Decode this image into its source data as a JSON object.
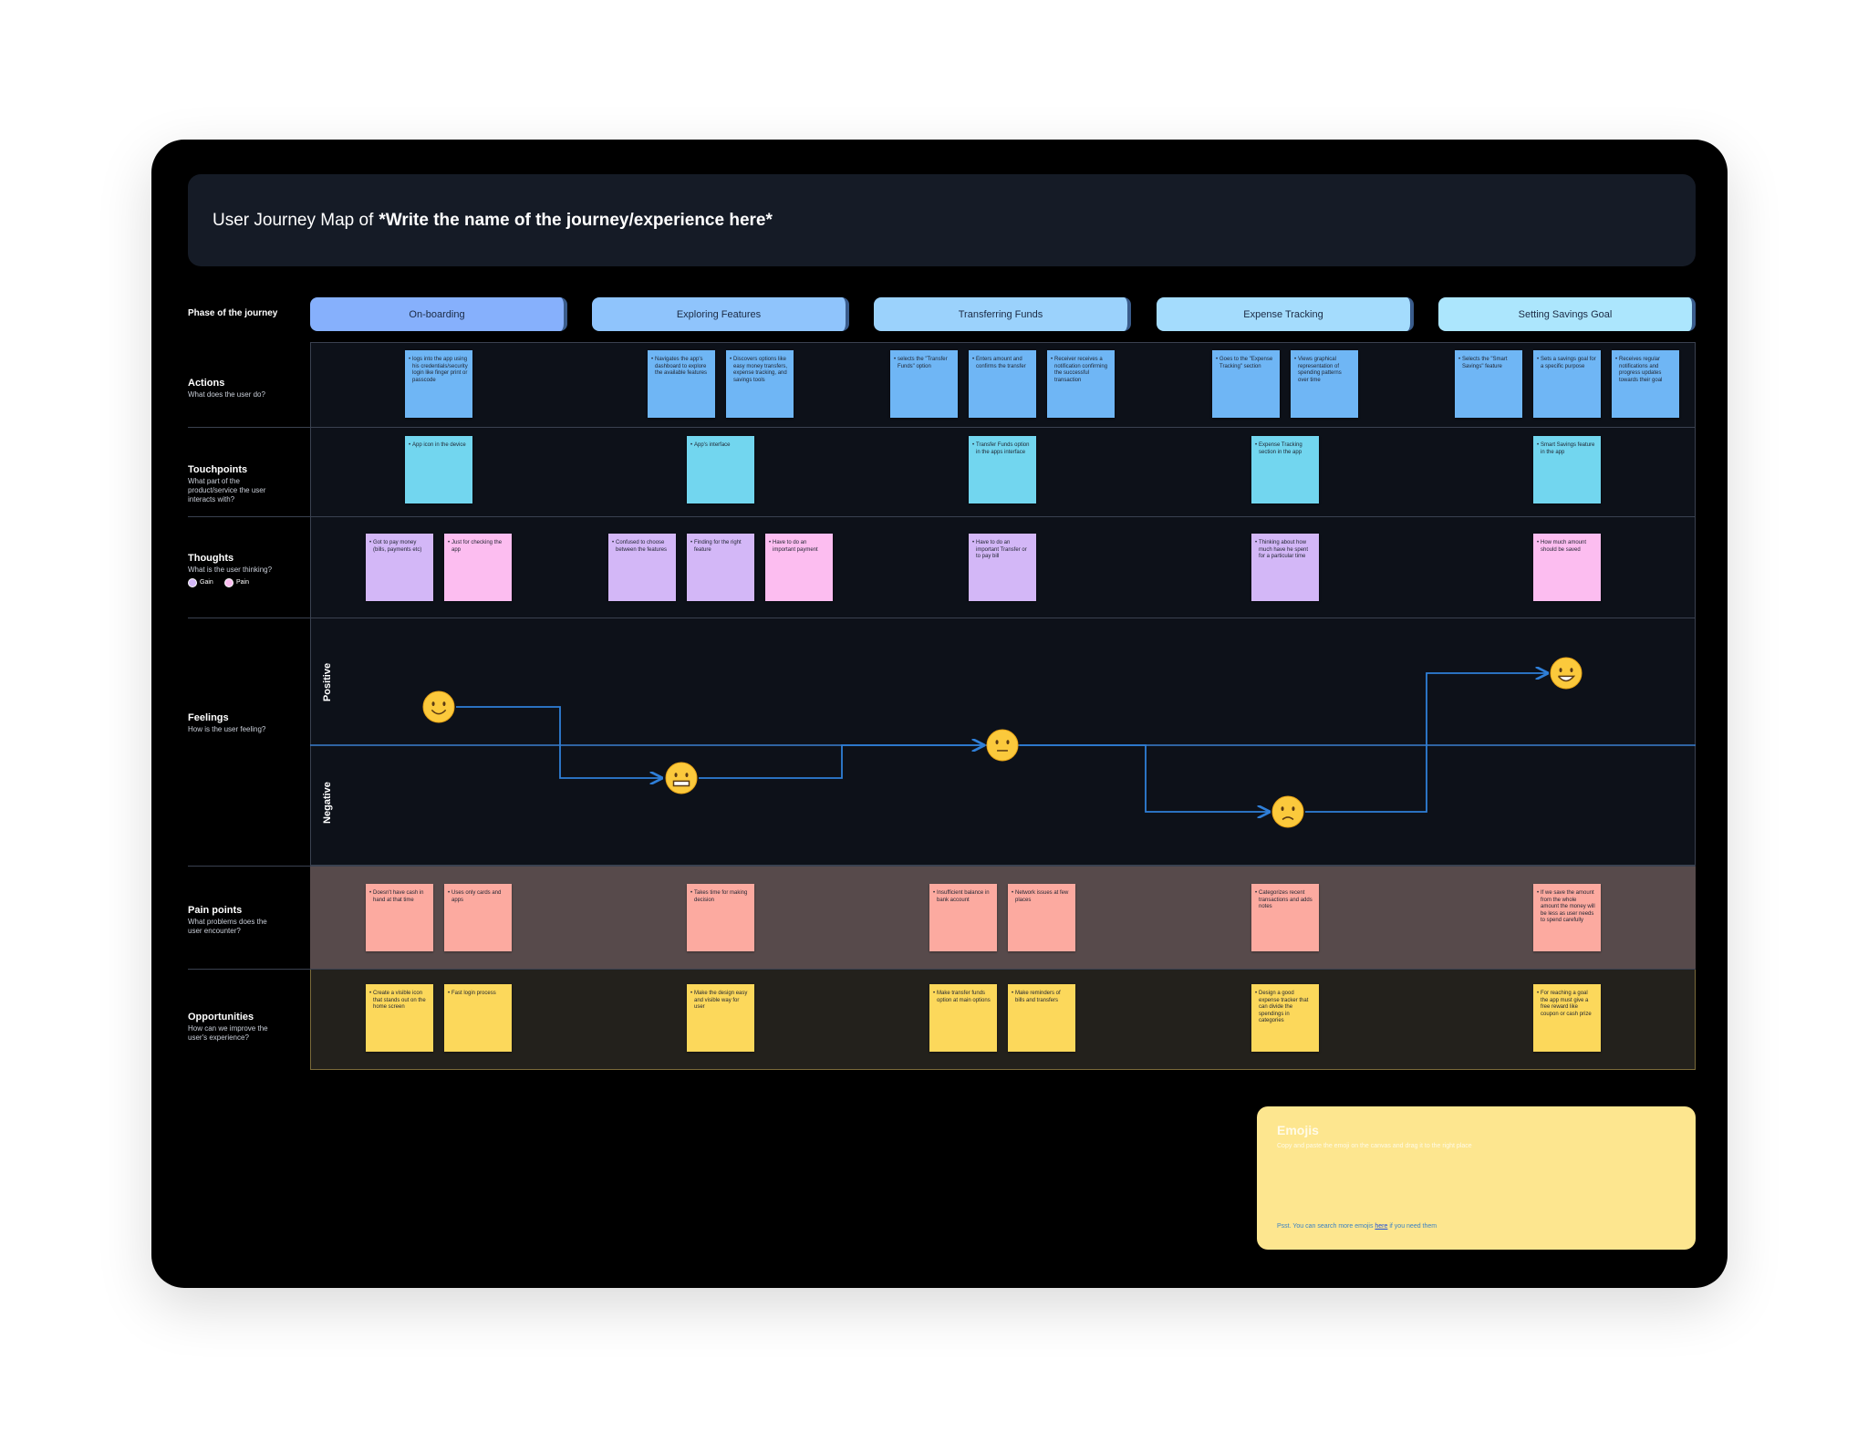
{
  "header": {
    "title_prefix": "User Journey Map of ",
    "title_placeholder": "*Write the name of the journey/experience here*"
  },
  "row_labels": {
    "phase": "Phase of the journey",
    "actions": {
      "title": "Actions",
      "subtitle": "What does the user do?"
    },
    "touchpoints": {
      "title": "Touchpoints",
      "subtitle": "What part of the product/service the user interacts with?"
    },
    "thoughts": {
      "title": "Thoughts",
      "subtitle": "What is the user thinking?",
      "legend": [
        "Gain",
        "Pain"
      ]
    },
    "feelings": {
      "title": "Feelings",
      "subtitle": "How is the user feeling?",
      "positive": "Positive",
      "negative": "Negative"
    },
    "pain_points": {
      "title": "Pain points",
      "subtitle": "What problems does the user encounter?"
    },
    "opportunities": {
      "title": "Opportunities",
      "subtitle": "How can we improve the user's experience?"
    }
  },
  "phases": [
    {
      "name": "On-boarding",
      "actions": [
        "logs into the app using his credentials/security login like finger print or passcode"
      ],
      "touchpoints": [
        "App icon in the device"
      ],
      "thoughts": {
        "gain": [
          "Got to pay money (bills, payments etc)"
        ],
        "pain": [
          "Just for checking the app"
        ]
      },
      "pain_points": [
        "Doesn't have cash in hand at that time",
        "Uses only cards and apps"
      ],
      "opportunities": [
        "Create a visible icon that stands out on the home screen",
        "Fast login process"
      ]
    },
    {
      "name": "Exploring Features",
      "actions": [
        "Navigates the app's dashboard to explore the available features",
        "Discovers options like easy money transfers, expense tracking, and savings tools"
      ],
      "touchpoints": [
        "App's interface"
      ],
      "thoughts": {
        "gain": [
          "Confused to choose between the features",
          "Finding for the right feature"
        ],
        "pain": [
          "Have to do an important payment"
        ]
      },
      "pain_points": [
        "Takes time for making decision"
      ],
      "opportunities": [
        "Make the design easy and visible way for user"
      ]
    },
    {
      "name": "Transferring Funds",
      "actions": [
        "selects the \"Transfer Funds\" option",
        "Enters amount and confirms the transfer",
        "Receiver receives a notification confirming the successful transaction"
      ],
      "touchpoints": [
        "Transfer Funds option in the apps interface"
      ],
      "thoughts": {
        "gain": [
          "Have to do an important Transfer or to pay bill"
        ],
        "pain": []
      },
      "pain_points": [
        "Insufficient balance in bank account",
        "Network issues at few places"
      ],
      "opportunities": [
        "Make transfer funds option at main options",
        "Make reminders of bills and transfers"
      ]
    },
    {
      "name": "Expense Tracking",
      "actions": [
        "Goes to the \"Expense Tracking\" section",
        "Views graphical representation of spending patterns over time"
      ],
      "touchpoints": [
        "Expense Tracking section in the app"
      ],
      "thoughts": {
        "gain": [
          "Thinking about how much have he spent for a particular time"
        ],
        "pain": []
      },
      "pain_points": [
        "Categorizes recent transactions and adds notes"
      ],
      "opportunities": [
        "Design a good expense tracker that can divide the spendings in categories"
      ]
    },
    {
      "name": "Setting Savings Goal",
      "actions": [
        "Selects the \"Smart Savings\" feature",
        "Sets a savings goal for a specific purpose",
        "Receives regular notifications and progress updates towards their goal"
      ],
      "touchpoints": [
        "Smart Savings feature in the app"
      ],
      "thoughts": {
        "gain": [],
        "pain": [
          "How much amount should be saved"
        ]
      },
      "pain_points": [
        "If we save the amount from the whole amount the money will be less as user needs to spend carefully"
      ],
      "opportunities": [
        "For reaching a goal the app must give a free reward like coupon or cash prize"
      ]
    }
  ],
  "emoji_panel": {
    "title": "Emojis",
    "subtitle": "Copy and paste the emoji on the canvas and drag it to the right place",
    "note_before": "Psst. You can search more emojis ",
    "note_link": "here",
    "note_after": " if you need them"
  }
}
